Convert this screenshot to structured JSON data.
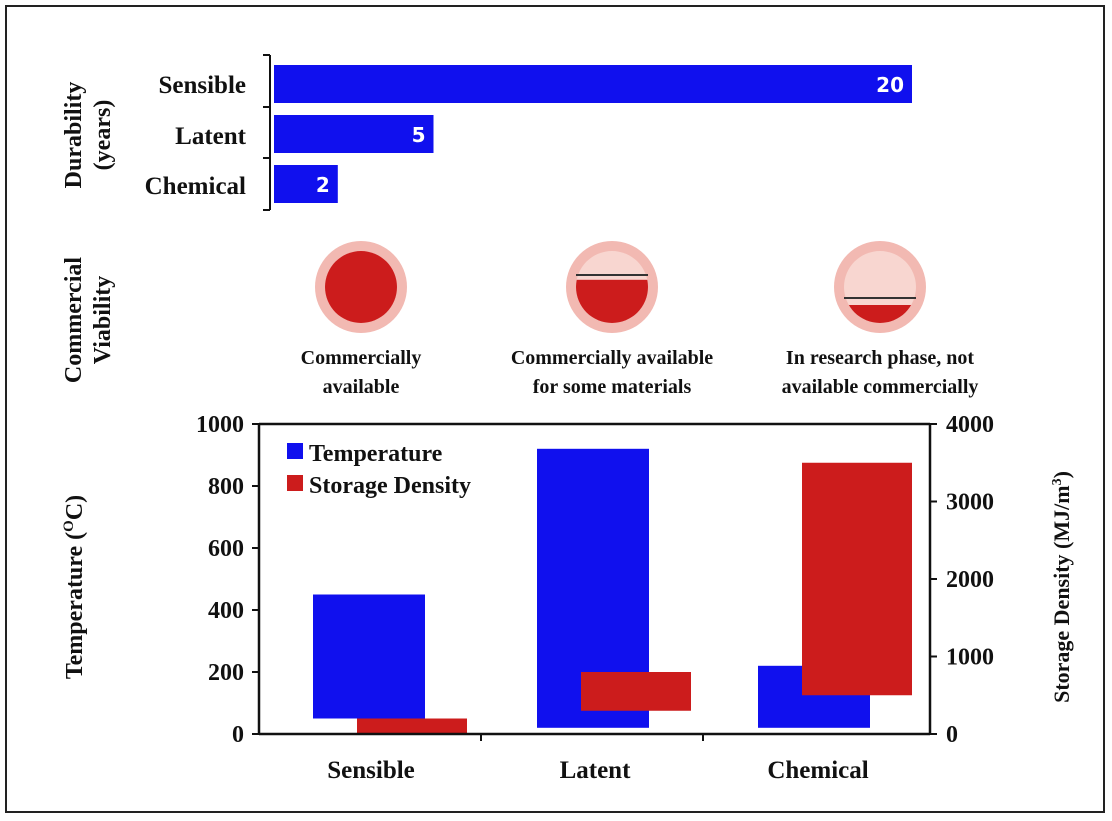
{
  "colors": {
    "blue": "#1010ee",
    "red": "#cc1c1c",
    "ring": "#f2b9b2",
    "pale": "#f8d6d0",
    "text": "#111111"
  },
  "durability": {
    "ylabel_line1": "Durability",
    "ylabel_line2": "(years)",
    "categories": [
      "Sensible",
      "Latent",
      "Chemical"
    ],
    "values": [
      20,
      5,
      2
    ],
    "value_labels": [
      "20",
      "5",
      "2"
    ]
  },
  "viability": {
    "ylabel_line1": "Commercial",
    "ylabel_line2": "Viability",
    "items": [
      {
        "line1": "Commercially",
        "line2": "available",
        "fill_fraction": 1.0
      },
      {
        "line1": "Commercially available",
        "line2": "for some materials",
        "fill_fraction": 0.6
      },
      {
        "line1": "In research phase, not",
        "line2": "available commercially",
        "fill_fraction": 0.25
      }
    ]
  },
  "chart_data": [
    {
      "type": "bar",
      "orientation": "horizontal",
      "categories": [
        "Sensible",
        "Latent",
        "Chemical"
      ],
      "values": [
        20,
        5,
        2
      ],
      "ylabel": "Durability (years)"
    },
    {
      "type": "bar",
      "categories": [
        "Sensible",
        "Latent",
        "Chemical"
      ],
      "ylabel": "Temperature (ᴼC)",
      "y2label": "Storage Density (MJ/m³)",
      "ylim": [
        0,
        1000
      ],
      "y2lim": [
        0,
        4000
      ],
      "yticks": [
        "0",
        "200",
        "400",
        "600",
        "800",
        "1000"
      ],
      "y2ticks": [
        "0",
        "1000",
        "2000",
        "3000",
        "4000"
      ],
      "legend_position": "top-left",
      "series": [
        {
          "name": "Temperature",
          "axis": "left",
          "values": [
            450,
            920,
            220
          ],
          "base": [
            50,
            20,
            20
          ]
        },
        {
          "name": "Storage Density",
          "axis": "right",
          "values": [
            200,
            800,
            3500
          ],
          "base": [
            0,
            300,
            500
          ]
        }
      ]
    }
  ]
}
